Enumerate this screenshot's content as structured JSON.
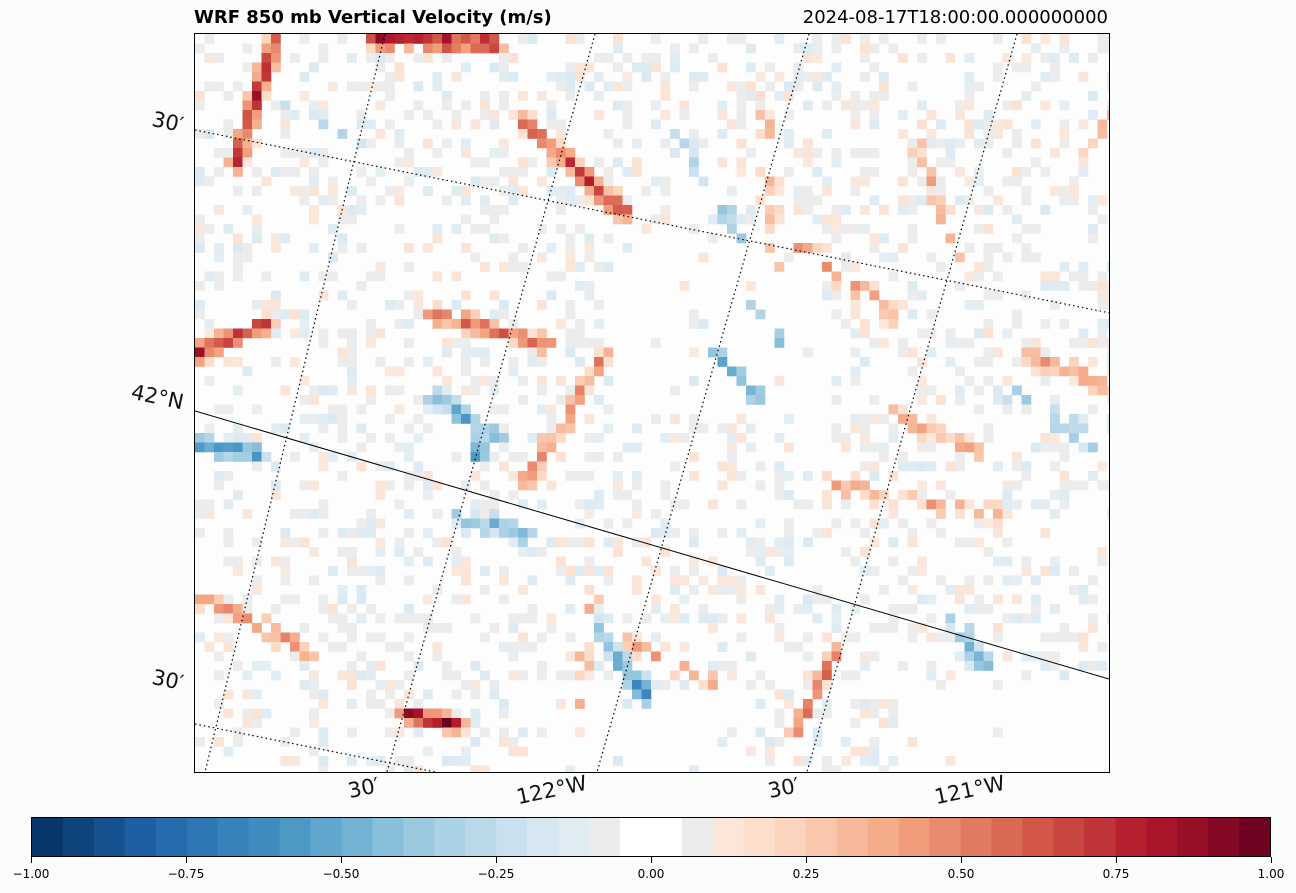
{
  "header": {
    "title": "WRF 850 mb Vertical Velocity (m/s)",
    "timestamp": "2024-08-17T18:00:00.000000000"
  },
  "map": {
    "variable": "vertical velocity",
    "units": "m/s",
    "level": "850 mb",
    "lat_labels": [
      "30′",
      "42°N",
      "30′"
    ],
    "lon_labels": [
      "30′",
      "122°W",
      "30′",
      "121°W"
    ],
    "colors": {
      "negative_max": "#053061",
      "neutral": "#ffffff",
      "positive_max": "#67001f",
      "frame": "#000000"
    }
  },
  "colorbar": {
    "min": -1.0,
    "max": 1.0,
    "levels": 40,
    "tick_labels": [
      "−1.00",
      "−0.75",
      "−0.50",
      "−0.25",
      "0.00",
      "0.25",
      "0.50",
      "0.75",
      "1.00"
    ],
    "tick_values": [
      -1.0,
      -0.75,
      -0.5,
      -0.25,
      0.0,
      0.25,
      0.5,
      0.75,
      1.0
    ]
  }
}
